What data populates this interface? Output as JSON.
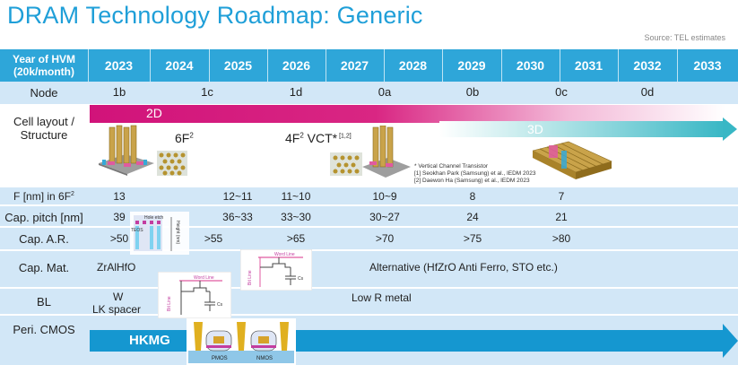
{
  "title": "DRAM Technology Roadmap: Generic",
  "source": "Source: TEL estimates",
  "header": {
    "year_label": "Year of HVM",
    "year_label_sub": "(20k/month)",
    "years": [
      "2023",
      "2024",
      "2025",
      "2026",
      "2027",
      "2028",
      "2029",
      "2030",
      "2031",
      "2032",
      "2033"
    ]
  },
  "rows": {
    "node": {
      "label": "Node",
      "values": [
        "1b",
        "1c",
        "1d",
        "0a",
        "0b",
        "0c",
        "0d"
      ]
    },
    "cell_layout": {
      "label": "Cell layout /",
      "label_sub": "Structure",
      "arrow_2d": "2D",
      "arrow_3d": "3D",
      "text_6f2": "6F",
      "text_6f2_sup": "2",
      "text_vct": "4F",
      "text_vct_sup": "2",
      "text_vct_rest": " VCT*",
      "text_vct_ref": " [1,2]",
      "notes": [
        "* Vertical Channel Transistor",
        "[1] Seokhan Park (Samsung) et al., IEDM 2023",
        "[2] Daewon Ha (Samsung) et al., IEDM 2023"
      ]
    },
    "f_nm": {
      "label": "F [nm] in 6F",
      "label_sup": "2",
      "values": [
        "13",
        "12~11",
        "11~10",
        "10~9",
        "8",
        "7"
      ]
    },
    "cap_pitch": {
      "label": "Cap. pitch [nm]",
      "values": [
        "39",
        "36~33",
        "33~30",
        "30~27",
        "24",
        "21"
      ]
    },
    "cap_ar": {
      "label": "Cap. A.R.",
      "values": [
        ">50",
        ">55",
        ">65",
        ">70",
        ">75",
        ">80"
      ]
    },
    "cap_mat": {
      "label": "Cap. Mat.",
      "value_1": "ZrAlHfO",
      "value_2": "Alternative (HfZrO Anti Ferro, STO etc.)"
    },
    "bl": {
      "label": "BL",
      "value_1": "W",
      "value_1b": "LK spacer",
      "value_2": "Low R metal"
    },
    "peri_cmos": {
      "label": "Peri. CMOS",
      "arrow": "HKMG"
    }
  },
  "figure_labels": {
    "hole_etch": "Hole etch",
    "teos": "TEOS",
    "height": "Height (nm)",
    "word_line": "Word Line",
    "bit_line": "Bit Line",
    "pmos": "PMOS",
    "nmos": "NMOS",
    "cs": "Cs"
  },
  "colors": {
    "title": "#1f9fd8",
    "header": "#2ea6d9",
    "row_blue": "#d2e7f7",
    "arrow_2d": "#d1137a",
    "arrow_3d": "#38b7c5",
    "arrow_hkmg": "#1597d0"
  }
}
